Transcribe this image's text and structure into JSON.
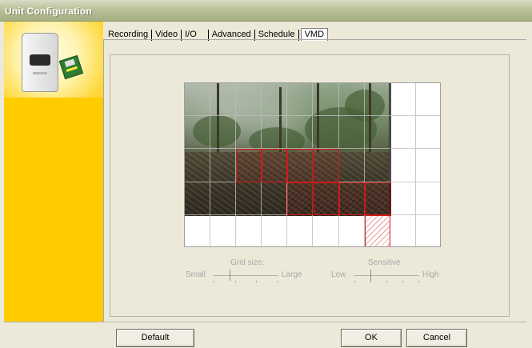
{
  "window": {
    "title": "Unit Configuration"
  },
  "sidebar": {
    "logo_icon": "camera-device-icon",
    "badge_icon": "floppy-disk-icon"
  },
  "tabs": [
    {
      "label": "Recording",
      "active": false
    },
    {
      "label": "Video",
      "active": false
    },
    {
      "label": "I/O",
      "active": false
    },
    {
      "label": "Advanced",
      "active": false
    },
    {
      "label": "Schedule",
      "active": false
    },
    {
      "label": "VMD",
      "active": true
    }
  ],
  "vmd": {
    "grid_columns": 10,
    "grid_rows": 5,
    "selected_cells": [
      [
        2,
        2
      ],
      [
        2,
        3
      ],
      [
        2,
        4
      ],
      [
        2,
        5
      ],
      [
        3,
        4
      ],
      [
        3,
        5
      ],
      [
        3,
        6
      ],
      [
        3,
        7
      ],
      [
        4,
        7
      ]
    ],
    "grid_size": {
      "label": "Grid size:",
      "min_label": "Small",
      "max_label": "Large",
      "value_fraction": 0.25
    },
    "sensitive": {
      "label": "Sensitive",
      "min_label": "Low",
      "max_label": "High",
      "value_fraction": 0.25
    }
  },
  "buttons": {
    "default": "Default",
    "ok": "OK",
    "cancel": "Cancel"
  },
  "colors": {
    "sidebar": "#ffcc00",
    "selection": "#d11a1a",
    "window_bg": "#ece9d8"
  }
}
